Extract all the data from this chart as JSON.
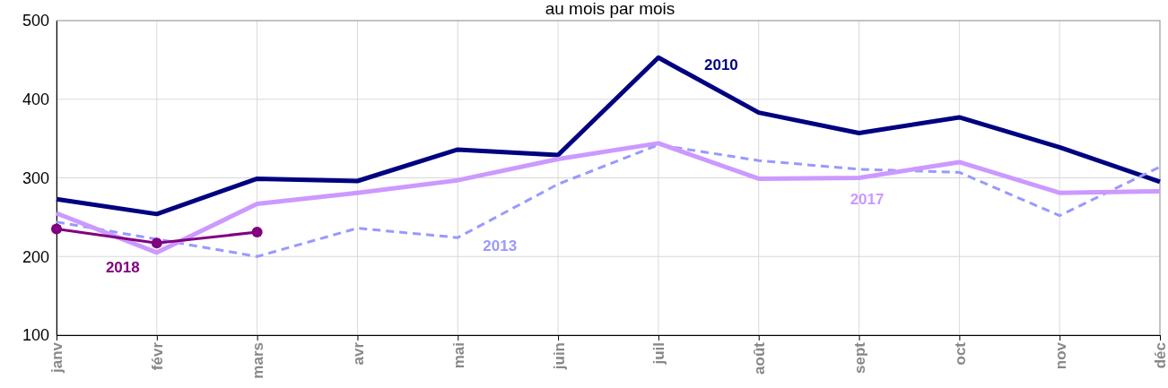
{
  "chart_data": {
    "type": "line",
    "title": "au mois par mois",
    "categories": [
      "janv",
      "févr",
      "mars",
      "avr",
      "mai",
      "juin",
      "juil",
      "août",
      "sept",
      "oct",
      "nov",
      "déc"
    ],
    "ylim": [
      100,
      500
    ],
    "yticks": [
      100,
      200,
      300,
      400,
      500
    ],
    "grid": true,
    "legend": false,
    "series": [
      {
        "name": "2010",
        "color": "#000080",
        "values": [
          273,
          254,
          299,
          296,
          336,
          329,
          453,
          383,
          357,
          377,
          339,
          295
        ]
      },
      {
        "name": "2013",
        "color": "#9999ff",
        "line_style": "dashed",
        "values": [
          244,
          222,
          200,
          236,
          224,
          292,
          342,
          322,
          311,
          307,
          252,
          314
        ]
      },
      {
        "name": "2017",
        "color": "#cc99ff",
        "values": [
          255,
          205,
          267,
          281,
          297,
          324,
          344,
          299,
          300,
          320,
          281,
          283
        ]
      },
      {
        "name": "2018",
        "color": "#800080",
        "marker": "circle",
        "values": [
          235,
          217,
          231,
          null,
          null,
          null,
          null,
          null,
          null,
          null,
          null,
          null
        ]
      }
    ]
  }
}
